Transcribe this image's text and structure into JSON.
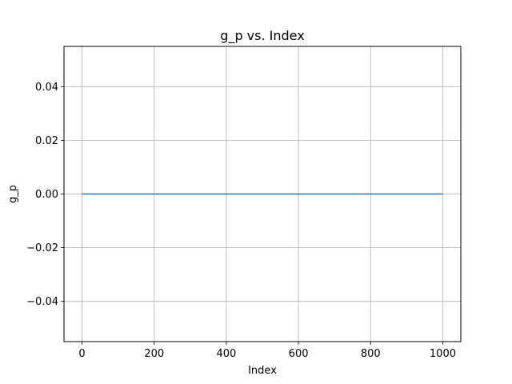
{
  "chart_data": {
    "type": "line",
    "title": "g_p vs. Index",
    "xlabel": "Index",
    "ylabel": "g_p",
    "xlim": [
      -50,
      1050
    ],
    "ylim": [
      -0.055,
      0.055
    ],
    "x_ticks": [
      0,
      200,
      400,
      600,
      800,
      1000
    ],
    "x_tick_labels": [
      "0",
      "200",
      "400",
      "600",
      "800",
      "1000"
    ],
    "y_ticks": [
      -0.04,
      -0.02,
      0.0,
      0.02,
      0.04
    ],
    "y_tick_labels": [
      "−0.04",
      "−0.02",
      "0.00",
      "0.02",
      "0.04"
    ],
    "grid": true,
    "series": [
      {
        "color": "#1f77b4",
        "x": [
          0,
          1000
        ],
        "values": [
          0,
          0
        ]
      }
    ]
  }
}
